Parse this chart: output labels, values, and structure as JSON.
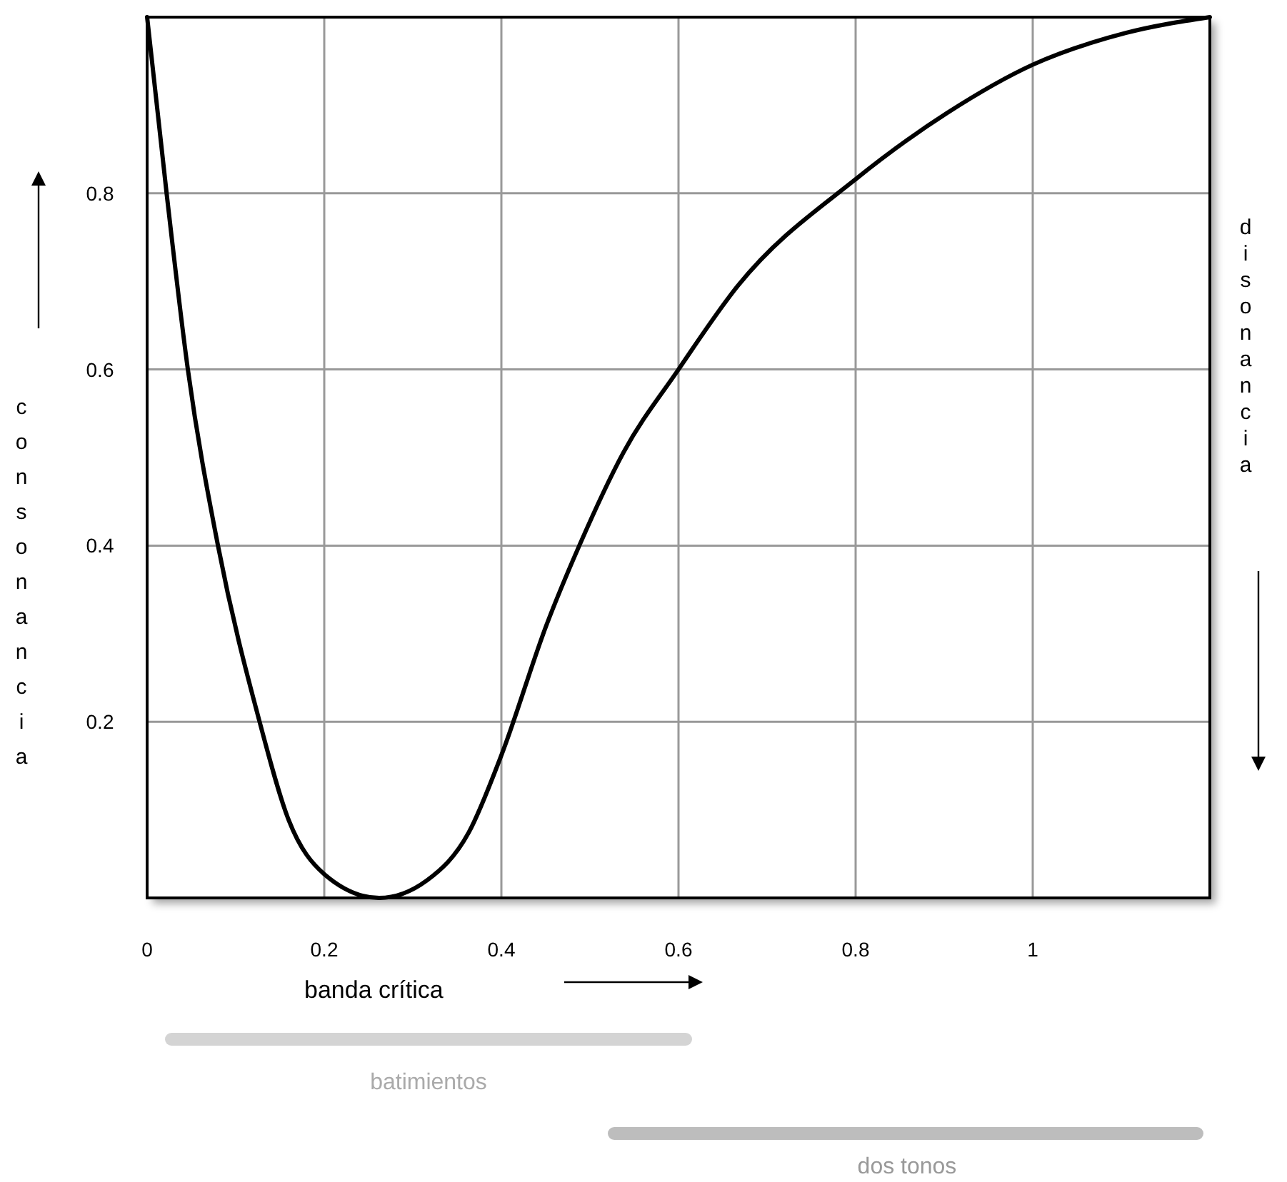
{
  "chart_data": {
    "type": "line",
    "xlabel": "banda crítica",
    "ylabel": "consonancia",
    "y2label": "disonancia",
    "annotations": [
      "batimientos",
      "dos tonos"
    ],
    "x": [
      0,
      0.022,
      0.046,
      0.08,
      0.127,
      0.16,
      0.2,
      0.262,
      0.316,
      0.363,
      0.4,
      0.451,
      0.488,
      0.538,
      0.6,
      0.667,
      0.8,
      0.903,
      1.0,
      1.105,
      1.2
    ],
    "series": [
      {
        "color": "#000000",
        "values": [
          1.0,
          0.8,
          0.6,
          0.4,
          0.2,
          0.088,
          0.027,
          0,
          0.02,
          0.074,
          0.162,
          0.31,
          0.4,
          0.506,
          0.6,
          0.695,
          0.816,
          0.891,
          0.946,
          0.982,
          1.0
        ]
      }
    ],
    "xlim": [
      0,
      1.2
    ],
    "xticks": [
      0,
      0.2,
      0.4,
      0.6,
      0.8,
      1
    ],
    "ylim": [
      0,
      1
    ],
    "yticks": [
      0.2,
      0.4,
      0.6,
      0.8
    ],
    "grid": true,
    "marker": "none",
    "line_style": "solid"
  }
}
